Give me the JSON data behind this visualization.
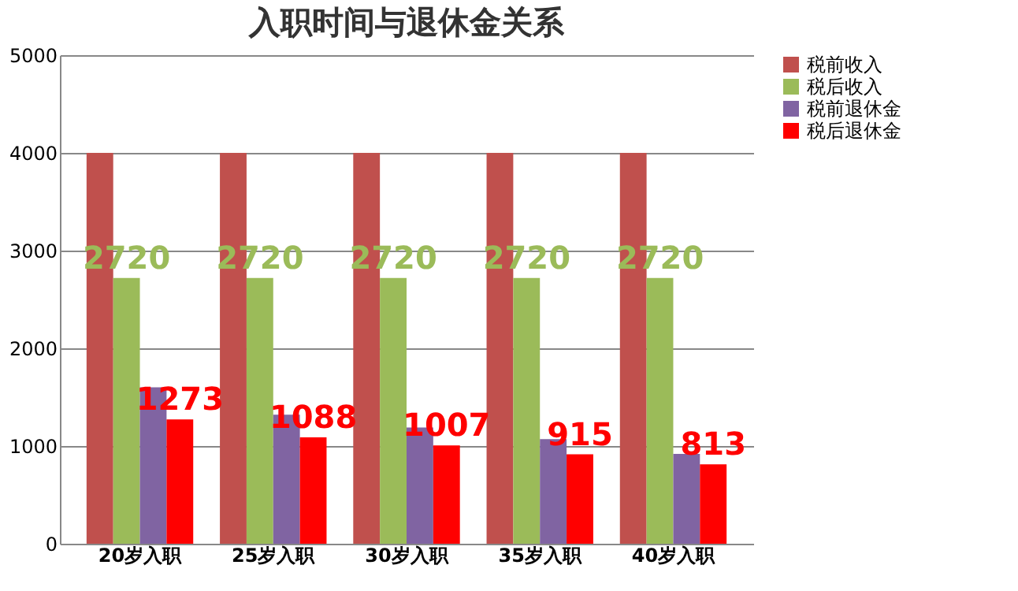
{
  "chart_data": {
    "type": "bar",
    "title": "入职时间与退休金关系",
    "categories": [
      "20岁入职",
      "25岁入职",
      "30岁入职",
      "35岁入职",
      "40岁入职"
    ],
    "series": [
      {
        "name": "税前收入",
        "color": "#c0504d",
        "values": [
          4000,
          4000,
          4000,
          4000,
          4000
        ]
      },
      {
        "name": "税后收入",
        "color": "#9bbb59",
        "values": [
          2720,
          2720,
          2720,
          2720,
          2720
        ],
        "value_labels": [
          "2720",
          "2720",
          "2720",
          "2720",
          "2720"
        ]
      },
      {
        "name": "税前退休金",
        "color": "#8064a2",
        "values": [
          1600,
          1320,
          1190,
          1070,
          920
        ]
      },
      {
        "name": "税后退休金",
        "color": "#ff0000",
        "values": [
          1273,
          1088,
          1007,
          915,
          813
        ],
        "value_labels": [
          "1273",
          "1088",
          "1007",
          "915",
          "813"
        ]
      }
    ],
    "ylim": [
      0,
      5000
    ],
    "yticks": [
      0,
      1000,
      2000,
      3000,
      4000,
      5000
    ],
    "grid": "y",
    "legend": "right"
  }
}
